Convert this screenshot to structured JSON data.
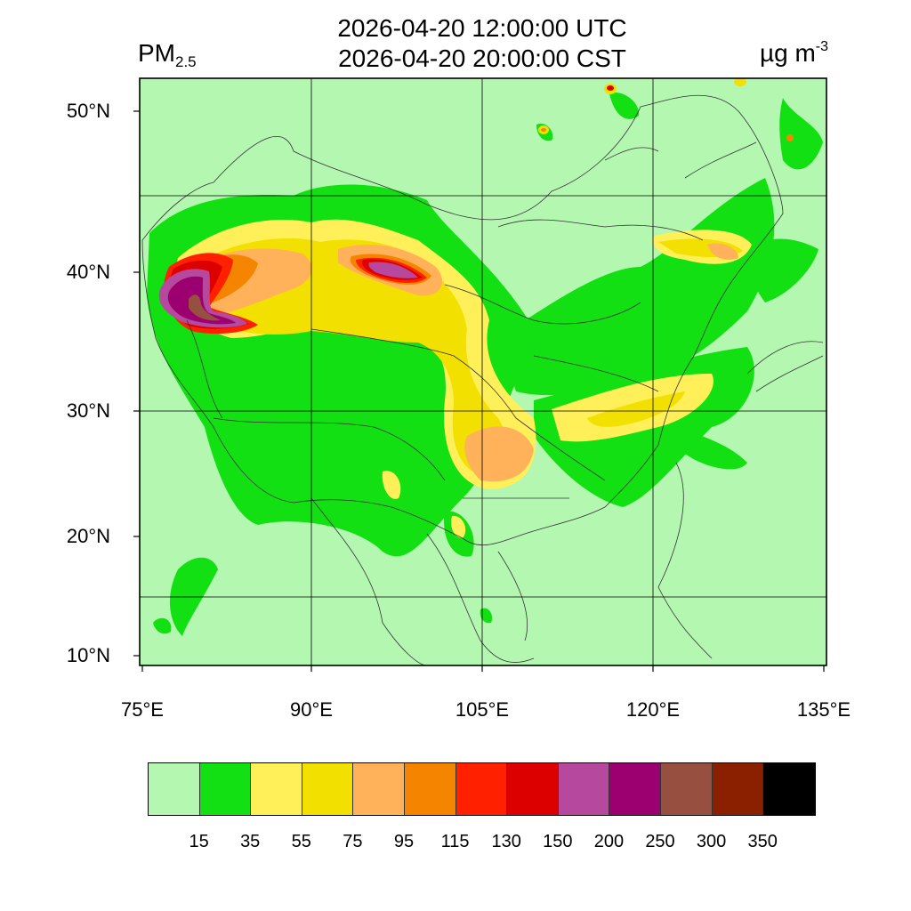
{
  "title_line1": "2026-04-20 12:00:00 UTC",
  "title_line2": "2026-04-20 20:00:00 CST",
  "variable_main": "PM",
  "variable_sub": "2.5",
  "unit_main": "µg m",
  "unit_sup": "-3",
  "lat_labels": [
    "50°N",
    "40°N",
    "30°N",
    "20°N",
    "10°N"
  ],
  "lon_labels": [
    "75°E",
    "90°E",
    "105°E",
    "120°E",
    "135°E"
  ],
  "legend": {
    "colors": [
      "#b4f7b0",
      "#12e012",
      "#fff05a",
      "#f2e000",
      "#ffb25a",
      "#f58500",
      "#ff2000",
      "#dd0000",
      "#b6489e",
      "#9c0070",
      "#975040",
      "#8a2000",
      "#000000"
    ],
    "labels": [
      "15",
      "35",
      "55",
      "75",
      "95",
      "115",
      "130",
      "150",
      "200",
      "250",
      "300",
      "350"
    ]
  }
}
